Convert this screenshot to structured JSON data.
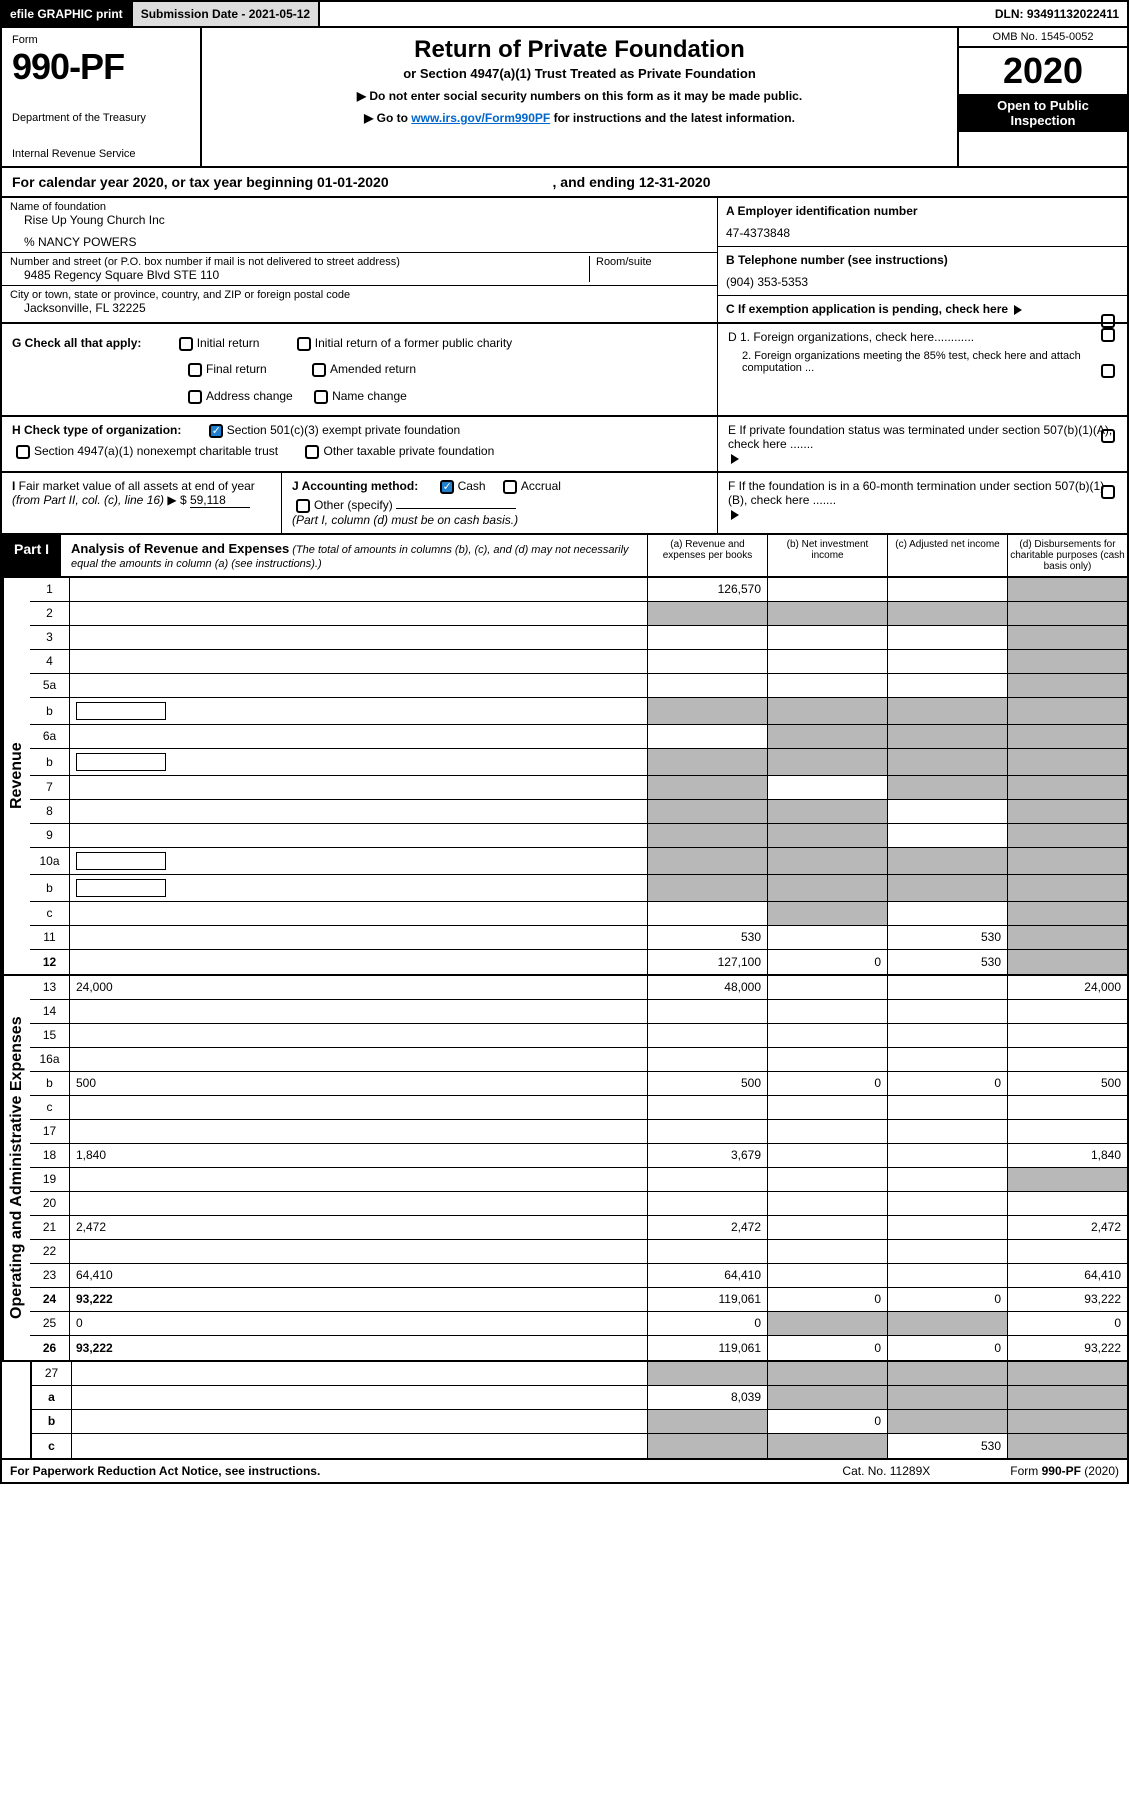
{
  "topbar": {
    "efile": "efile GRAPHIC print",
    "subdate_label": "Submission Date - 2021-05-12",
    "dln": "DLN: 93491132022411"
  },
  "header": {
    "form_word": "Form",
    "form_num": "990-PF",
    "dept": "Department of the Treasury",
    "irs": "Internal Revenue Service",
    "title": "Return of Private Foundation",
    "subtitle": "or Section 4947(a)(1) Trust Treated as Private Foundation",
    "note1": "▶ Do not enter social security numbers on this form as it may be made public.",
    "note2_pre": "▶ Go to ",
    "note2_link": "www.irs.gov/Form990PF",
    "note2_post": " for instructions and the latest information.",
    "omb": "OMB No. 1545-0052",
    "year": "2020",
    "inspect": "Open to Public Inspection"
  },
  "calyear": {
    "pre": "For calendar year 2020, or tax year beginning ",
    "begin": "01-01-2020",
    "mid": ", and ending ",
    "end": "12-31-2020"
  },
  "info": {
    "name_label": "Name of foundation",
    "name": "Rise Up Young Church Inc",
    "care": "% NANCY POWERS",
    "addr_label": "Number and street (or P.O. box number if mail is not delivered to street address)",
    "room_label": "Room/suite",
    "addr": "9485 Regency Square Blvd STE 110",
    "city_label": "City or town, state or province, country, and ZIP or foreign postal code",
    "city": "Jacksonville, FL  32225",
    "a_label": "A Employer identification number",
    "a_val": "47-4373848",
    "b_label": "B Telephone number (see instructions)",
    "b_val": "(904) 353-5353",
    "c_label": "C If exemption application is pending, check here"
  },
  "g": {
    "label": "G Check all that apply:",
    "initial": "Initial return",
    "initial_former": "Initial return of a former public charity",
    "final": "Final return",
    "amended": "Amended return",
    "addr_change": "Address change",
    "name_change": "Name change",
    "d1": "D 1. Foreign organizations, check here............",
    "d2": "2. Foreign organizations meeting the 85% test, check here and attach computation ..."
  },
  "h": {
    "label": "H Check type of organization:",
    "s501": "Section 501(c)(3) exempt private foundation",
    "s4947": "Section 4947(a)(1) nonexempt charitable trust",
    "other_tax": "Other taxable private foundation",
    "e_label": "E  If private foundation status was terminated under section 507(b)(1)(A), check here ......."
  },
  "i": {
    "label": "I Fair market value of all assets at end of year (from Part II, col. (c), line 16) ▶ $",
    "val": "59,118",
    "j_label": "J Accounting method:",
    "cash": "Cash",
    "accrual": "Accrual",
    "other": "Other (specify)",
    "note": "(Part I, column (d) must be on cash basis.)",
    "f_label": "F  If the foundation is in a 60-month termination under section 507(b)(1)(B), check here ......."
  },
  "part1": {
    "label": "Part I",
    "title": "Analysis of Revenue and Expenses",
    "note": " (The total of amounts in columns (b), (c), and (d) may not necessarily equal the amounts in column (a) (see instructions).)",
    "col_a": "(a) Revenue and expenses per books",
    "col_b": "(b) Net investment income",
    "col_c": "(c) Adjusted net income",
    "col_d": "(d) Disbursements for charitable purposes (cash basis only)"
  },
  "rotate": {
    "rev": "Revenue",
    "exp": "Operating and Administrative Expenses"
  },
  "rows": [
    {
      "n": "1",
      "d": "",
      "a": "126,570",
      "b": "",
      "c": "",
      "shade": [
        "d"
      ]
    },
    {
      "n": "2",
      "d": "",
      "a": "",
      "b": "",
      "c": "",
      "shade": [
        "a",
        "b",
        "c",
        "d"
      ],
      "b_bold": true
    },
    {
      "n": "3",
      "d": "",
      "a": "",
      "b": "",
      "c": "",
      "shade": [
        "d"
      ]
    },
    {
      "n": "4",
      "d": "",
      "a": "",
      "b": "",
      "c": "",
      "shade": [
        "d"
      ]
    },
    {
      "n": "5a",
      "d": "",
      "a": "",
      "b": "",
      "c": "",
      "shade": [
        "d"
      ]
    },
    {
      "n": "b",
      "d": "",
      "a": "",
      "b": "",
      "c": "",
      "shade": [
        "a",
        "b",
        "c",
        "d"
      ],
      "box": true
    },
    {
      "n": "6a",
      "d": "",
      "a": "",
      "b": "",
      "c": "",
      "shade": [
        "b",
        "c",
        "d"
      ]
    },
    {
      "n": "b",
      "d": "",
      "a": "",
      "b": "",
      "c": "",
      "shade": [
        "a",
        "b",
        "c",
        "d"
      ],
      "box": true
    },
    {
      "n": "7",
      "d": "",
      "a": "",
      "b": "",
      "c": "",
      "shade": [
        "a",
        "c",
        "d"
      ]
    },
    {
      "n": "8",
      "d": "",
      "a": "",
      "b": "",
      "c": "",
      "shade": [
        "a",
        "b",
        "d"
      ]
    },
    {
      "n": "9",
      "d": "",
      "a": "",
      "b": "",
      "c": "",
      "shade": [
        "a",
        "b",
        "d"
      ]
    },
    {
      "n": "10a",
      "d": "",
      "a": "",
      "b": "",
      "c": "",
      "shade": [
        "a",
        "b",
        "c",
        "d"
      ],
      "box": true
    },
    {
      "n": "b",
      "d": "",
      "a": "",
      "b": "",
      "c": "",
      "shade": [
        "a",
        "b",
        "c",
        "d"
      ],
      "box": true
    },
    {
      "n": "c",
      "d": "",
      "a": "",
      "b": "",
      "c": "",
      "shade": [
        "b",
        "d"
      ]
    },
    {
      "n": "11",
      "d": "",
      "a": "530",
      "b": "",
      "c": "530",
      "shade": [
        "d"
      ]
    },
    {
      "n": "12",
      "d": "",
      "a": "127,100",
      "b": "0",
      "c": "530",
      "shade": [
        "d"
      ],
      "bold": true
    }
  ],
  "rows2": [
    {
      "n": "13",
      "d": "24,000",
      "a": "48,000",
      "b": "",
      "c": ""
    },
    {
      "n": "14",
      "d": "",
      "a": "",
      "b": "",
      "c": ""
    },
    {
      "n": "15",
      "d": "",
      "a": "",
      "b": "",
      "c": ""
    },
    {
      "n": "16a",
      "d": "",
      "a": "",
      "b": "",
      "c": ""
    },
    {
      "n": "b",
      "d": "500",
      "a": "500",
      "b": "0",
      "c": "0"
    },
    {
      "n": "c",
      "d": "",
      "a": "",
      "b": "",
      "c": ""
    },
    {
      "n": "17",
      "d": "",
      "a": "",
      "b": "",
      "c": ""
    },
    {
      "n": "18",
      "d": "1,840",
      "a": "3,679",
      "b": "",
      "c": ""
    },
    {
      "n": "19",
      "d": "",
      "a": "",
      "b": "",
      "c": "",
      "shade": [
        "d"
      ]
    },
    {
      "n": "20",
      "d": "",
      "a": "",
      "b": "",
      "c": ""
    },
    {
      "n": "21",
      "d": "2,472",
      "a": "2,472",
      "b": "",
      "c": ""
    },
    {
      "n": "22",
      "d": "",
      "a": "",
      "b": "",
      "c": ""
    },
    {
      "n": "23",
      "d": "64,410",
      "a": "64,410",
      "b": "",
      "c": ""
    },
    {
      "n": "24",
      "d": "93,222",
      "a": "119,061",
      "b": "0",
      "c": "0",
      "bold": true
    },
    {
      "n": "25",
      "d": "0",
      "a": "0",
      "b": "",
      "c": "",
      "shade": [
        "b",
        "c"
      ]
    },
    {
      "n": "26",
      "d": "93,222",
      "a": "119,061",
      "b": "0",
      "c": "0",
      "bold": true
    }
  ],
  "rows3": [
    {
      "n": "27",
      "d": "",
      "a": "",
      "b": "",
      "c": "",
      "shade": [
        "a",
        "b",
        "c",
        "d"
      ]
    },
    {
      "n": "a",
      "d": "",
      "a": "8,039",
      "b": "",
      "c": "",
      "shade": [
        "b",
        "c",
        "d"
      ],
      "bold": true
    },
    {
      "n": "b",
      "d": "",
      "a": "",
      "b": "0",
      "c": "",
      "shade": [
        "a",
        "c",
        "d"
      ],
      "bold": true
    },
    {
      "n": "c",
      "d": "",
      "a": "",
      "b": "",
      "c": "530",
      "shade": [
        "a",
        "b",
        "d"
      ],
      "bold": true
    }
  ],
  "footer": {
    "left": "For Paperwork Reduction Act Notice, see instructions.",
    "mid": "Cat. No. 11289X",
    "right": "Form 990-PF (2020)"
  }
}
